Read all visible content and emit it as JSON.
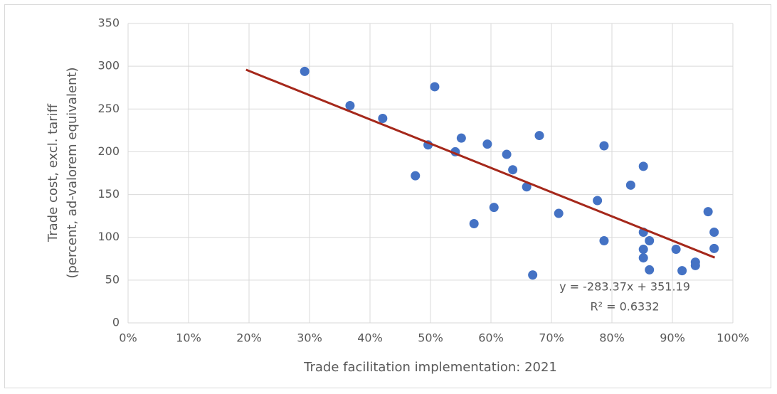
{
  "chart_data": {
    "type": "scatter",
    "x_label": "Trade facilitation implementation: 2021",
    "y_label": [
      "Trade cost, excl. tariff",
      "(percent, ad-valorem equivalent)"
    ],
    "color": "#4472c4",
    "x": [
      0.292,
      0.367,
      0.421,
      0.475,
      0.496,
      0.507,
      0.541,
      0.551,
      0.572,
      0.594,
      0.605,
      0.626,
      0.636,
      0.659,
      0.669,
      0.68,
      0.712,
      0.776,
      0.787,
      0.787,
      0.831,
      0.852,
      0.852,
      0.852,
      0.852,
      0.862,
      0.862,
      0.906,
      0.916,
      0.938,
      0.938,
      0.959,
      0.969,
      0.969
    ],
    "values": [
      294,
      254,
      239,
      172,
      208,
      276,
      200,
      216,
      116,
      209,
      135,
      197,
      179,
      159,
      56,
      219,
      128,
      143,
      207,
      96,
      161,
      183,
      106,
      86,
      76,
      96,
      62,
      86,
      61,
      71,
      67,
      130,
      106,
      87
    ],
    "trendline": {
      "slope": -283.37,
      "intercept": 351.19,
      "x": [
        0.195,
        0.97
      ],
      "color": "#a5281b",
      "labels": [
        "y = -283.37x + 351.19",
        "R² = 0.6332"
      ]
    },
    "xlim": [
      0,
      1
    ],
    "xticks": [
      {
        "value": 0,
        "label": "0%"
      },
      {
        "value": 0.1,
        "label": "10%"
      },
      {
        "value": 0.2,
        "label": "20%"
      },
      {
        "value": 0.3,
        "label": "30%"
      },
      {
        "value": 0.4,
        "label": "40%"
      },
      {
        "value": 0.5,
        "label": "50%"
      },
      {
        "value": 0.6,
        "label": "60%"
      },
      {
        "value": 0.7,
        "label": "70%"
      },
      {
        "value": 0.8,
        "label": "80%"
      },
      {
        "value": 0.9,
        "label": "90%"
      },
      {
        "value": 1,
        "label": "100%"
      }
    ],
    "ylim": [
      0,
      350
    ],
    "yticks": [
      0,
      50,
      100,
      150,
      200,
      250,
      300,
      350
    ],
    "grid": true
  }
}
